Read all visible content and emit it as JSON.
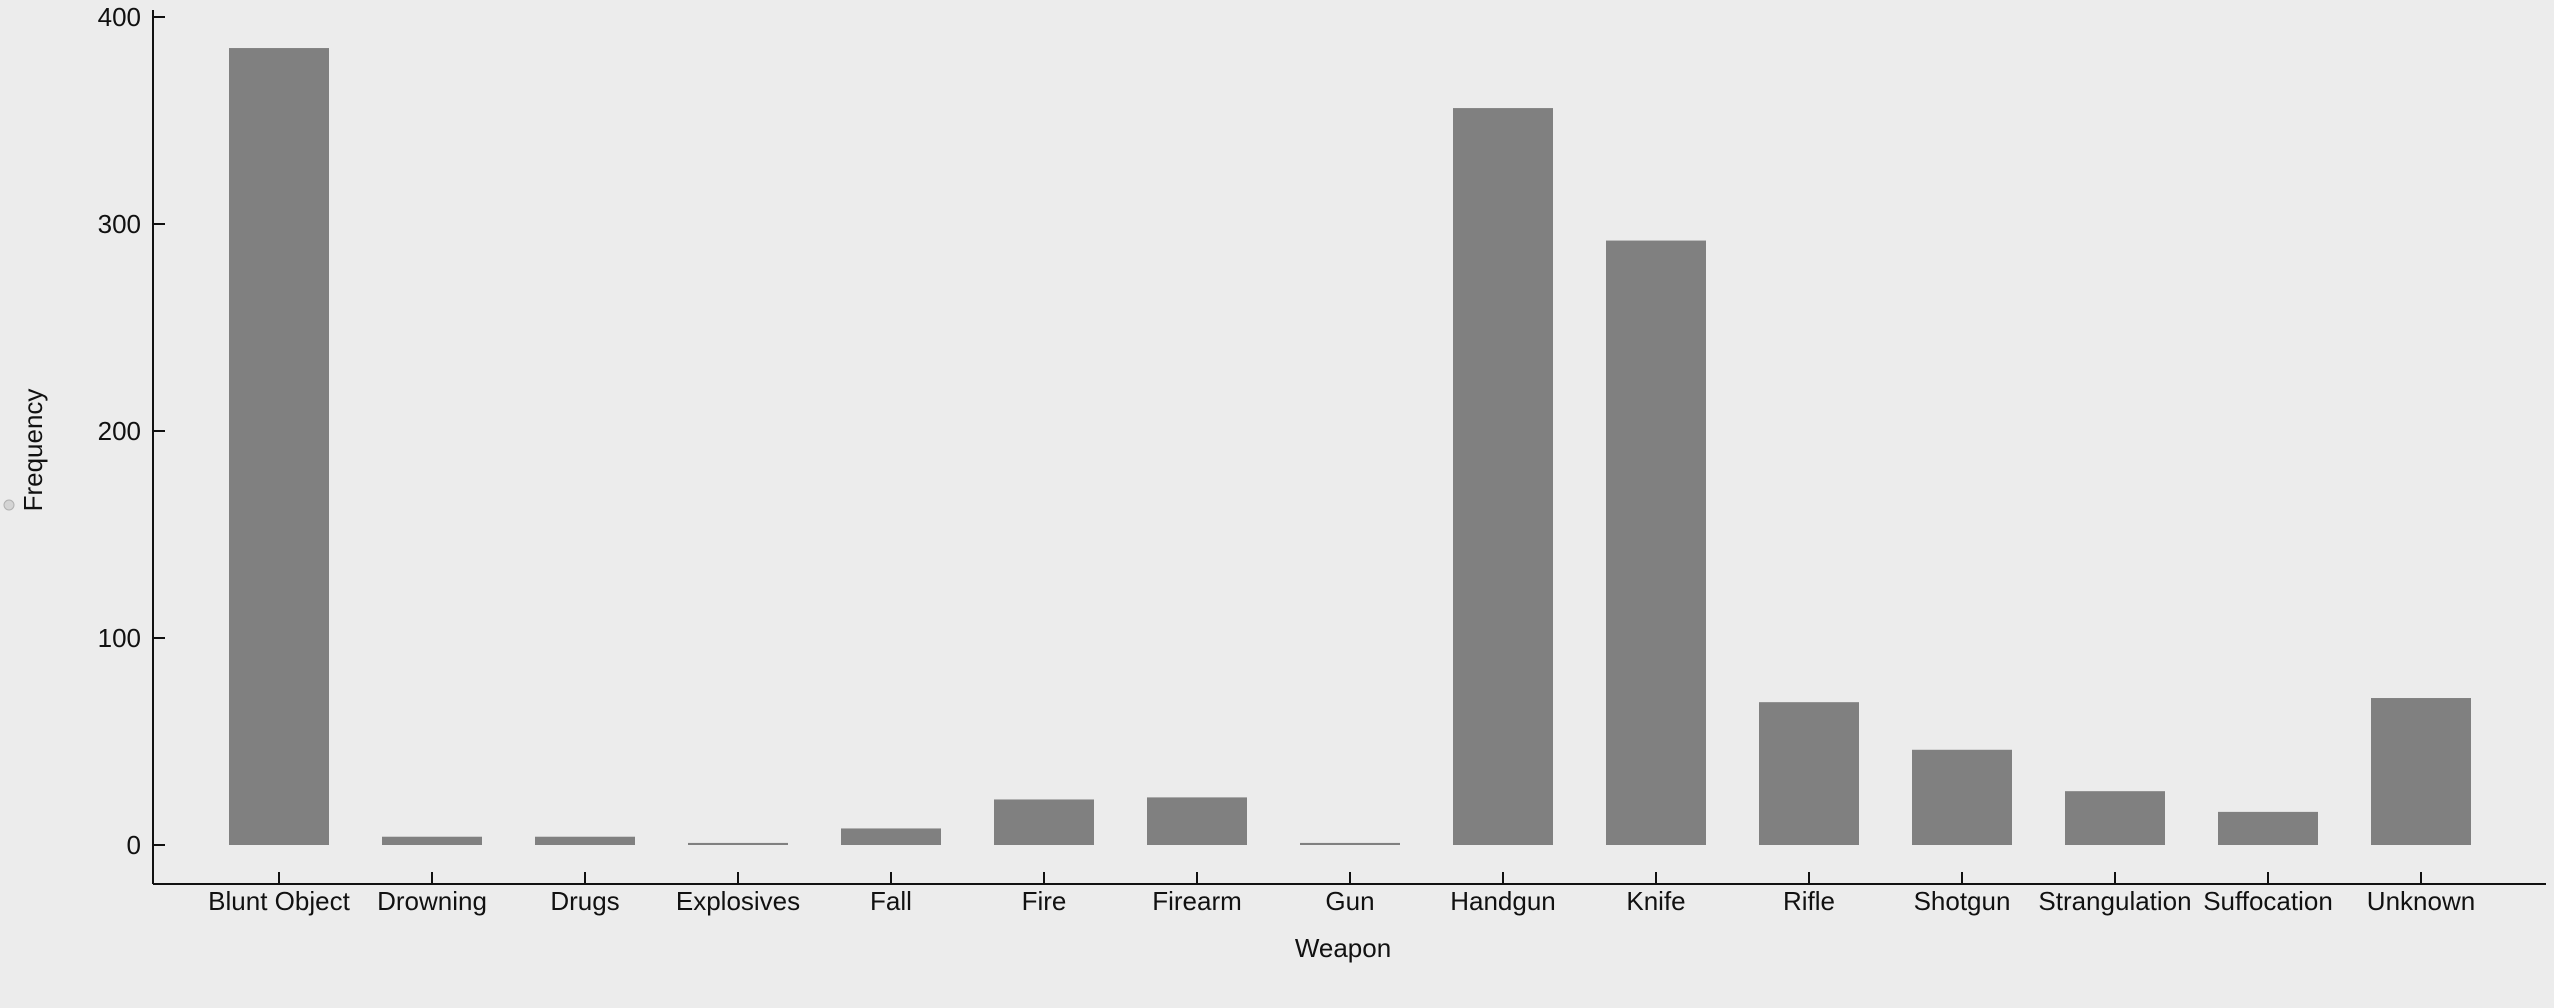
{
  "chart_data": {
    "type": "bar",
    "xlabel": "Weapon",
    "ylabel": "Frequency",
    "categories": [
      "Blunt Object",
      "Drowning",
      "Drugs",
      "Explosives",
      "Fall",
      "Fire",
      "Firearm",
      "Gun",
      "Handgun",
      "Knife",
      "Rifle",
      "Shotgun",
      "Strangulation",
      "Suffocation",
      "Unknown"
    ],
    "values": [
      385,
      4,
      4,
      1,
      8,
      22,
      23,
      1,
      356,
      292,
      69,
      46,
      26,
      16,
      71
    ],
    "ylim": [
      0,
      400
    ],
    "yticks": [
      0,
      100,
      200,
      300,
      400
    ],
    "grid": false,
    "legend": "none",
    "colors": {
      "bar": "#808080",
      "axis": "#111111",
      "background": "#ececec"
    }
  }
}
